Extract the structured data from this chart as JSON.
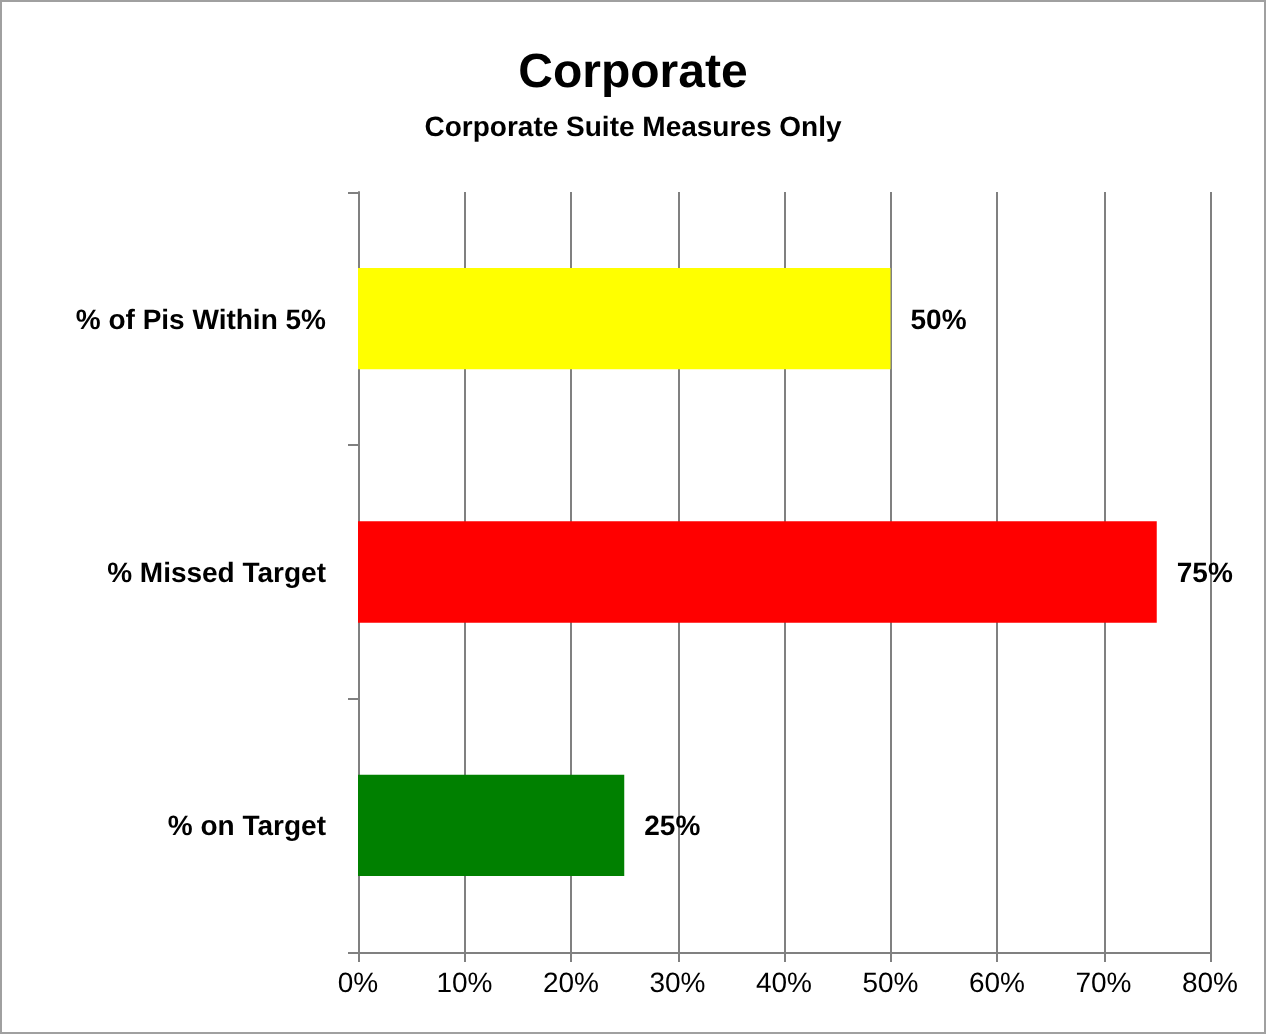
{
  "chart_data": {
    "type": "bar",
    "orientation": "horizontal",
    "title": "Corporate",
    "subtitle": "Corporate Suite Measures Only",
    "categories": [
      "% of Pis Within 5%",
      "% Missed Target",
      "% on Target"
    ],
    "values": [
      50,
      75,
      25
    ],
    "colors": [
      "#ffff00",
      "#ff0000",
      "#008000"
    ],
    "value_labels": [
      "50%",
      "75%",
      "25%"
    ],
    "xlim": [
      0,
      80
    ],
    "xticks": [
      {
        "value": 0,
        "label": "0%"
      },
      {
        "value": 10,
        "label": "10%"
      },
      {
        "value": 20,
        "label": "20%"
      },
      {
        "value": 30,
        "label": "30%"
      },
      {
        "value": 40,
        "label": "40%"
      },
      {
        "value": 50,
        "label": "50%"
      },
      {
        "value": 60,
        "label": "60%"
      },
      {
        "value": 70,
        "label": "70%"
      },
      {
        "value": 80,
        "label": "80%"
      }
    ],
    "grid": "x"
  }
}
